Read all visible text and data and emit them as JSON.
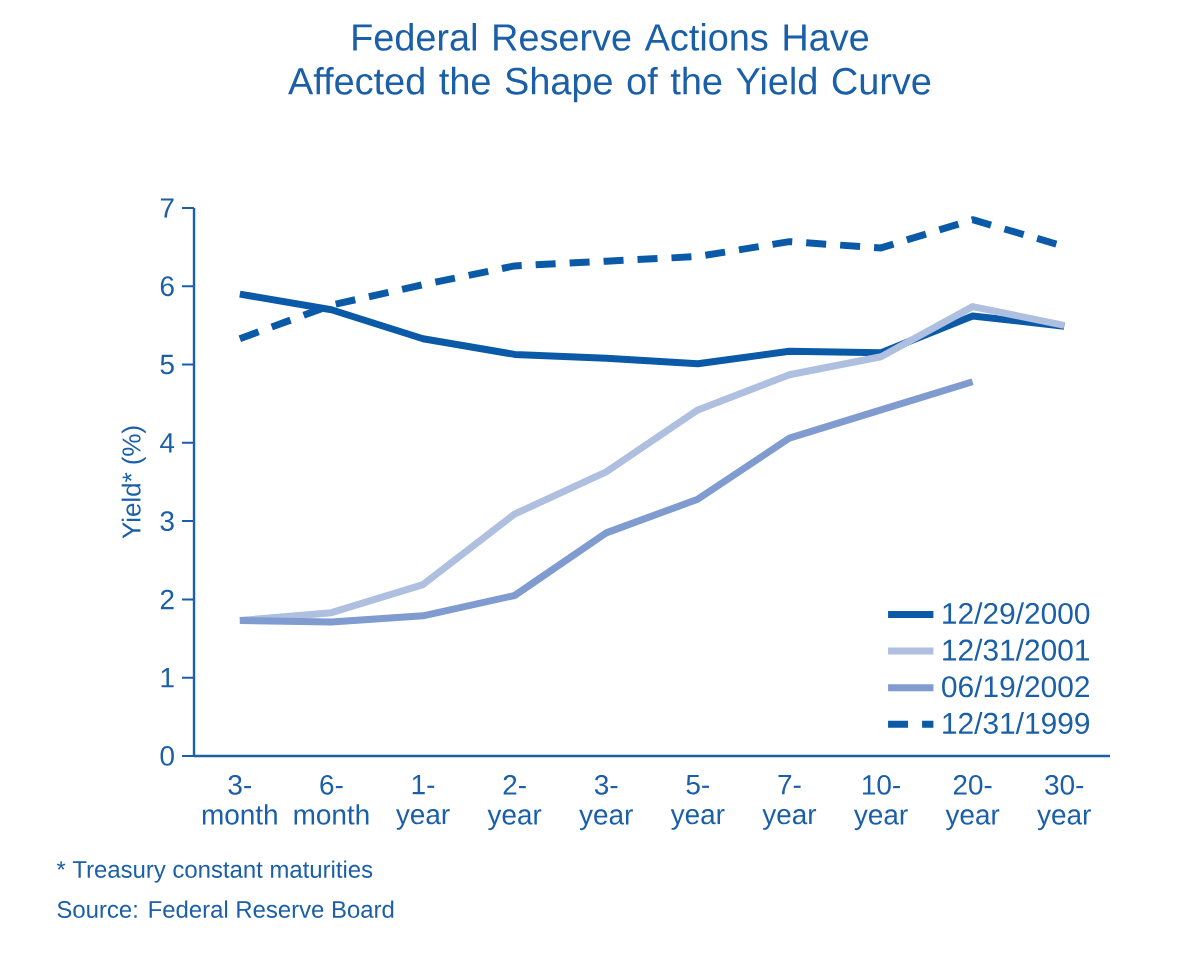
{
  "chart_data": {
    "type": "line",
    "title": "Federal Reserve Actions Have Affected the Shape of the Yield Curve",
    "ylabel": "Yield* (%)",
    "categories": [
      "3- month",
      "6- month",
      "1- year",
      "2- year",
      "3- year",
      "5- year",
      "7- year",
      "10- year",
      "20- year",
      "30- year"
    ],
    "series": [
      {
        "name": "12/29/2000",
        "color": "#0a5aa8",
        "values": [
          5.9,
          5.7,
          5.33,
          5.13,
          5.08,
          5.01,
          5.17,
          5.15,
          5.62,
          5.49
        ]
      },
      {
        "name": "12/31/2001",
        "color": "#aebfe0",
        "values": [
          1.73,
          1.83,
          2.19,
          3.09,
          3.63,
          4.42,
          4.87,
          5.1,
          5.74,
          5.5
        ]
      },
      {
        "name": "06/19/2002",
        "color": "#7f9bd0",
        "values": [
          1.73,
          1.71,
          1.79,
          2.05,
          2.85,
          3.28,
          4.06,
          4.42,
          4.78,
          null
        ]
      },
      {
        "name": "12/31/1999",
        "color": "#0a5aa8",
        "line_style": "dashed",
        "values": [
          5.33,
          5.76,
          6.02,
          6.26,
          6.32,
          6.38,
          6.57,
          6.49,
          6.85,
          6.51
        ]
      }
    ],
    "ylim": [
      0,
      7
    ],
    "yticks": [
      0,
      1,
      2,
      3,
      4,
      5,
      6,
      7
    ],
    "legend": "bottom right",
    "grid": false,
    "marker": "none",
    "annotations": [
      "* Treasury constant maturities",
      "Source: Federal Reserve Board"
    ]
  }
}
